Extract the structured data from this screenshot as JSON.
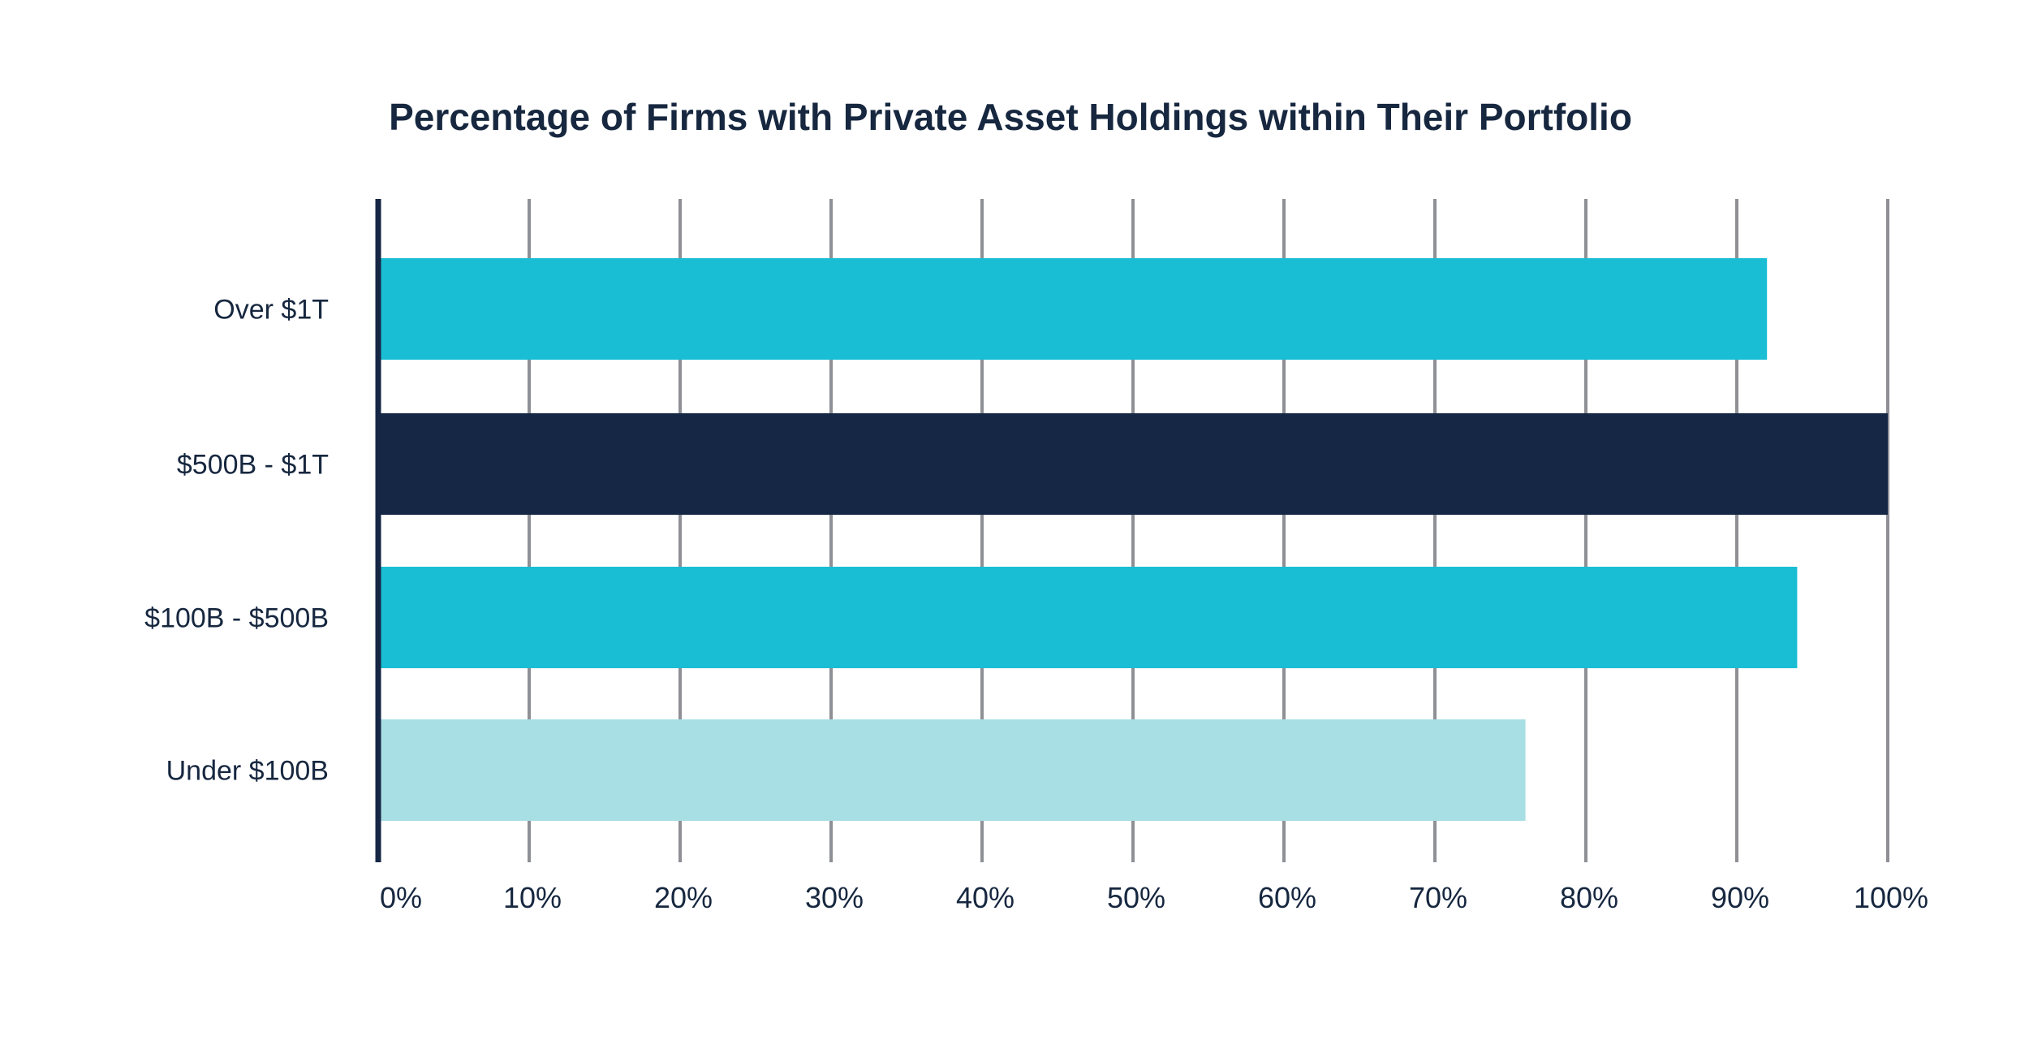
{
  "chart_data": {
    "type": "bar",
    "orientation": "horizontal",
    "title": "Percentage of Firms with Private Asset Holdings within Their Portfolio",
    "xlabel": "",
    "ylabel": "",
    "categories": [
      "Over $1T",
      "$500B - $1T",
      "$100B - $500B",
      "Under $100B"
    ],
    "values": [
      92,
      100,
      94,
      76
    ],
    "bar_colors": [
      "#1abed4",
      "#162746",
      "#1abed4",
      "#a8dfe4"
    ],
    "xlim": [
      0,
      100
    ],
    "xticks": [
      0,
      10,
      20,
      30,
      40,
      50,
      60,
      70,
      80,
      90,
      100
    ],
    "xtick_labels": [
      "0%",
      "10%",
      "20%",
      "30%",
      "40%",
      "50%",
      "60%",
      "70%",
      "80%",
      "90%",
      "100%"
    ],
    "grid": "vertical",
    "grid_color": "#8e9095",
    "axis_color": "#162746",
    "legend": "none"
  }
}
